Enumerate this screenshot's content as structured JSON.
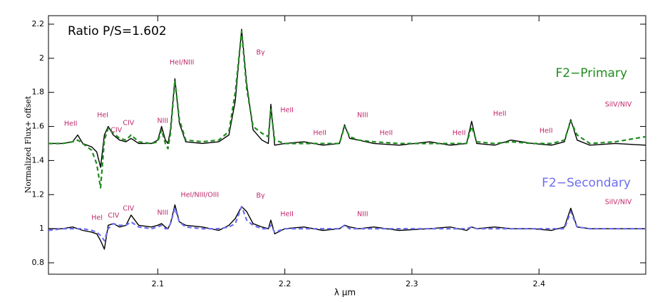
{
  "chart_data": {
    "type": "line",
    "x_label": "λ μm",
    "y_label": "Normalized Flux+ offset",
    "note": "Ratio P/S=1.602",
    "xlim": [
      2.014,
      2.484
    ],
    "ylim": [
      0.733,
      2.25
    ],
    "xticks": [
      2.1,
      2.2,
      2.3,
      2.4
    ],
    "yticks": [
      0.8,
      1.0,
      1.2,
      1.4,
      1.6,
      1.8,
      2.0,
      2.2
    ],
    "annotation_color": "#c0286a",
    "x": [
      2.014,
      2.025,
      2.033,
      2.037,
      2.041,
      2.048,
      2.052,
      2.055,
      2.058,
      2.061,
      2.065,
      2.07,
      2.075,
      2.079,
      2.085,
      2.095,
      2.1,
      2.103,
      2.106,
      2.108,
      2.11,
      2.1135,
      2.117,
      2.122,
      2.135,
      2.148,
      2.156,
      2.161,
      2.166,
      2.17,
      2.175,
      2.182,
      2.187,
      2.189,
      2.192,
      2.2,
      2.215,
      2.23,
      2.243,
      2.247,
      2.251,
      2.258,
      2.27,
      2.29,
      2.314,
      2.33,
      2.343,
      2.347,
      2.351,
      2.365,
      2.378,
      2.395,
      2.41,
      2.42,
      2.425,
      2.43,
      2.44,
      2.46,
      2.484
    ],
    "series": [
      {
        "color": "#000000",
        "dashed": false,
        "values": [
          1.5,
          1.5,
          1.51,
          1.55,
          1.5,
          1.48,
          1.45,
          1.36,
          1.55,
          1.6,
          1.55,
          1.52,
          1.51,
          1.53,
          1.5,
          1.5,
          1.52,
          1.6,
          1.52,
          1.5,
          1.58,
          1.88,
          1.62,
          1.51,
          1.5,
          1.51,
          1.55,
          1.75,
          2.17,
          1.85,
          1.58,
          1.52,
          1.5,
          1.73,
          1.49,
          1.5,
          1.51,
          1.49,
          1.5,
          1.61,
          1.53,
          1.52,
          1.5,
          1.49,
          1.51,
          1.49,
          1.5,
          1.63,
          1.5,
          1.49,
          1.52,
          1.5,
          1.49,
          1.51,
          1.64,
          1.52,
          1.49,
          1.5,
          1.49
        ]
      },
      {
        "name": "F2−Primary",
        "color": "#1f8c1f",
        "dashed": true,
        "values": [
          1.5,
          1.5,
          1.51,
          1.52,
          1.5,
          1.46,
          1.38,
          1.24,
          1.52,
          1.59,
          1.56,
          1.53,
          1.52,
          1.55,
          1.51,
          1.5,
          1.51,
          1.58,
          1.5,
          1.47,
          1.56,
          1.87,
          1.64,
          1.52,
          1.51,
          1.52,
          1.57,
          1.8,
          2.16,
          1.82,
          1.6,
          1.56,
          1.54,
          1.7,
          1.52,
          1.5,
          1.5,
          1.5,
          1.5,
          1.6,
          1.54,
          1.52,
          1.51,
          1.5,
          1.5,
          1.5,
          1.5,
          1.6,
          1.51,
          1.5,
          1.51,
          1.5,
          1.5,
          1.52,
          1.63,
          1.55,
          1.5,
          1.51,
          1.54
        ]
      },
      {
        "color": "#000000",
        "dashed": false,
        "values": [
          1.0,
          1.0,
          1.01,
          1.0,
          0.99,
          0.98,
          0.97,
          0.93,
          0.88,
          1.02,
          1.03,
          1.01,
          1.02,
          1.08,
          1.02,
          1.01,
          1.02,
          1.03,
          1.01,
          1.0,
          1.03,
          1.14,
          1.04,
          1.02,
          1.01,
          0.99,
          1.02,
          1.06,
          1.13,
          1.1,
          1.03,
          1.01,
          1.0,
          1.05,
          0.97,
          1.0,
          1.01,
          0.99,
          1.0,
          1.02,
          1.01,
          1.0,
          1.01,
          0.99,
          1.0,
          1.01,
          0.99,
          1.01,
          1.0,
          1.01,
          1.0,
          1.0,
          0.99,
          1.01,
          1.12,
          1.01,
          1.0,
          1.0,
          1.0
        ]
      },
      {
        "name": "F2−Secondary",
        "color": "#6e6ef0",
        "dashed": true,
        "values": [
          0.99,
          1.0,
          1.0,
          1.0,
          1.0,
          0.99,
          0.98,
          0.96,
          0.93,
          1.0,
          1.03,
          1.02,
          1.02,
          1.04,
          1.01,
          1.0,
          1.01,
          1.02,
          1.0,
          1.0,
          1.03,
          1.12,
          1.04,
          1.01,
          1.0,
          1.0,
          1.01,
          1.03,
          1.13,
          1.05,
          1.02,
          1.0,
          1.0,
          1.02,
          0.98,
          1.0,
          1.0,
          1.0,
          1.0,
          1.02,
          1.0,
          1.0,
          1.0,
          1.0,
          1.0,
          1.0,
          1.0,
          1.01,
          1.0,
          1.0,
          1.0,
          1.0,
          1.0,
          1.0,
          1.1,
          1.01,
          1.0,
          1.0,
          1.0
        ]
      }
    ],
    "annotations": [
      {
        "text": "HeII",
        "x": 2.0315,
        "y": 1.615
      },
      {
        "text": "HeI",
        "x": 2.0567,
        "y": 1.665
      },
      {
        "text": "CIV",
        "x": 2.0674,
        "y": 1.577
      },
      {
        "text": "CIV",
        "x": 2.077,
        "y": 1.619
      },
      {
        "text": "NIII",
        "x": 2.1039,
        "y": 1.632
      },
      {
        "text": "HeI/NIII",
        "x": 2.119,
        "y": 1.974
      },
      {
        "text": "Bγ",
        "x": 2.1809,
        "y": 2.033
      },
      {
        "text": "HeII",
        "x": 2.2017,
        "y": 1.694
      },
      {
        "text": "HeII",
        "x": 2.2275,
        "y": 1.561
      },
      {
        "text": "NIII",
        "x": 2.2612,
        "y": 1.665
      },
      {
        "text": "HeII",
        "x": 2.2798,
        "y": 1.561
      },
      {
        "text": "HeII",
        "x": 2.3371,
        "y": 1.561
      },
      {
        "text": "HeII",
        "x": 2.3691,
        "y": 1.673
      },
      {
        "text": "HeII",
        "x": 2.4056,
        "y": 1.573
      },
      {
        "text": "SiIV/NIV",
        "x": 2.4624,
        "y": 1.728
      },
      {
        "text": "HeI",
        "x": 2.0522,
        "y": 1.063
      },
      {
        "text": "CIV",
        "x": 2.0652,
        "y": 1.076
      },
      {
        "text": "CIV",
        "x": 2.077,
        "y": 1.118
      },
      {
        "text": "NIII",
        "x": 2.1039,
        "y": 1.093
      },
      {
        "text": "HeI/NIII/OIII",
        "x": 2.1331,
        "y": 1.197
      },
      {
        "text": "Bγ",
        "x": 2.1809,
        "y": 1.193
      },
      {
        "text": "HeII",
        "x": 2.2017,
        "y": 1.084
      },
      {
        "text": "NIII",
        "x": 2.2612,
        "y": 1.084
      },
      {
        "text": "SiIV/NIV",
        "x": 2.4624,
        "y": 1.155
      }
    ]
  }
}
